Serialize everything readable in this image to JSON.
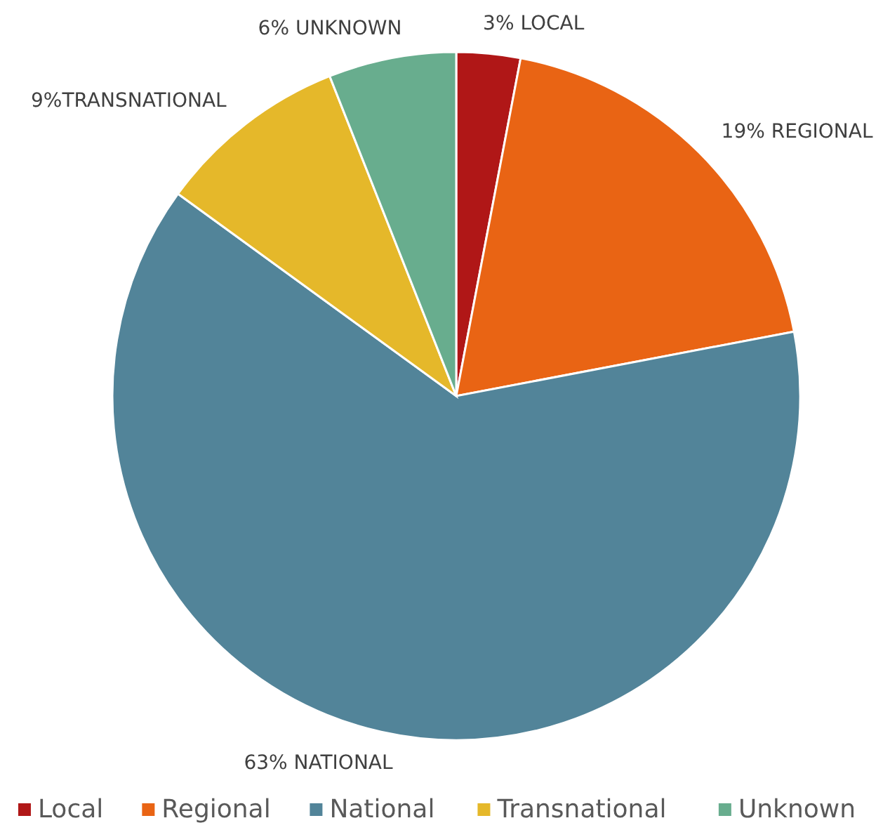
{
  "chart_data": {
    "type": "pie",
    "categories": [
      "Local",
      "Regional",
      "National",
      "Transnational",
      "Unknown"
    ],
    "values": [
      3,
      19,
      63,
      9,
      6
    ],
    "colors": [
      "#b01717",
      "#e96414",
      "#528499",
      "#e5b82a",
      "#68ad8e"
    ],
    "value_labels": [
      "3% LOCAL",
      "19% REGIONAL",
      "63% NATIONAL",
      "9%TRANSNATIONAL",
      "6% UNKNOWN"
    ],
    "legend": "bottom"
  }
}
